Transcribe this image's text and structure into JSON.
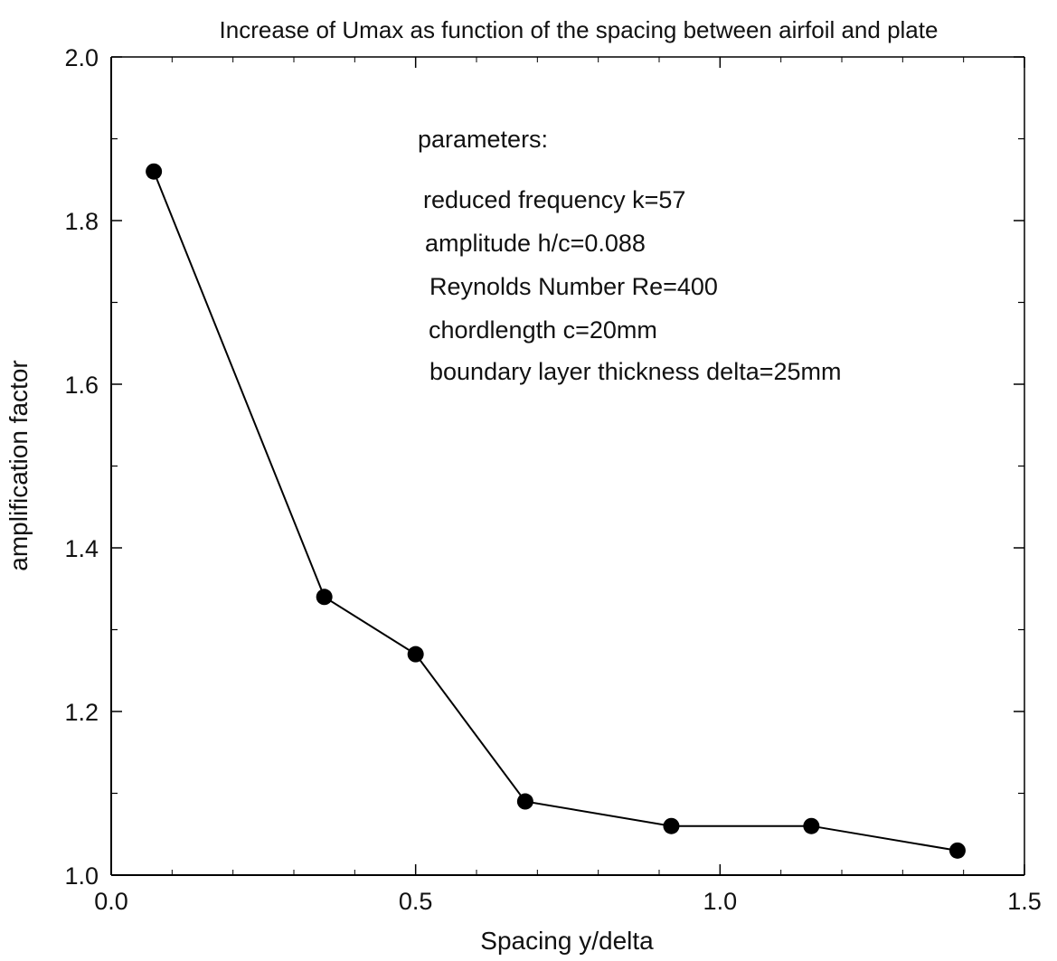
{
  "chart_data": {
    "type": "line",
    "title": "Increase of Umax as function of the spacing between airfoil and plate",
    "xlabel": "Spacing y/delta",
    "ylabel": "amplification factor",
    "xlim": [
      0.0,
      1.5
    ],
    "ylim": [
      1.0,
      2.0
    ],
    "x_ticks": [
      0.0,
      0.5,
      1.0,
      1.5
    ],
    "x_tick_labels": [
      "0.0",
      "0.5",
      "1.0",
      "1.5"
    ],
    "y_ticks": [
      1.0,
      1.2,
      1.4,
      1.6,
      1.8,
      2.0
    ],
    "y_tick_labels": [
      "1.0",
      "1.2",
      "1.4",
      "1.6",
      "1.8",
      "2.0"
    ],
    "grid": false,
    "legend": "none",
    "series": [
      {
        "x": [
          0.07,
          0.35,
          0.5,
          0.68,
          0.92,
          1.15,
          1.39
        ],
        "y": [
          1.86,
          1.34,
          1.27,
          1.09,
          1.06,
          1.06,
          1.03
        ],
        "marker": "filled-circle",
        "color": "#000000"
      }
    ],
    "annotations": {
      "header": "parameters:",
      "lines": [
        "reduced frequency k=57",
        "amplitude h/c=0.088",
        "Reynolds Number Re=400",
        "chordlength c=20mm",
        "boundary layer thickness delta=25mm"
      ]
    }
  }
}
